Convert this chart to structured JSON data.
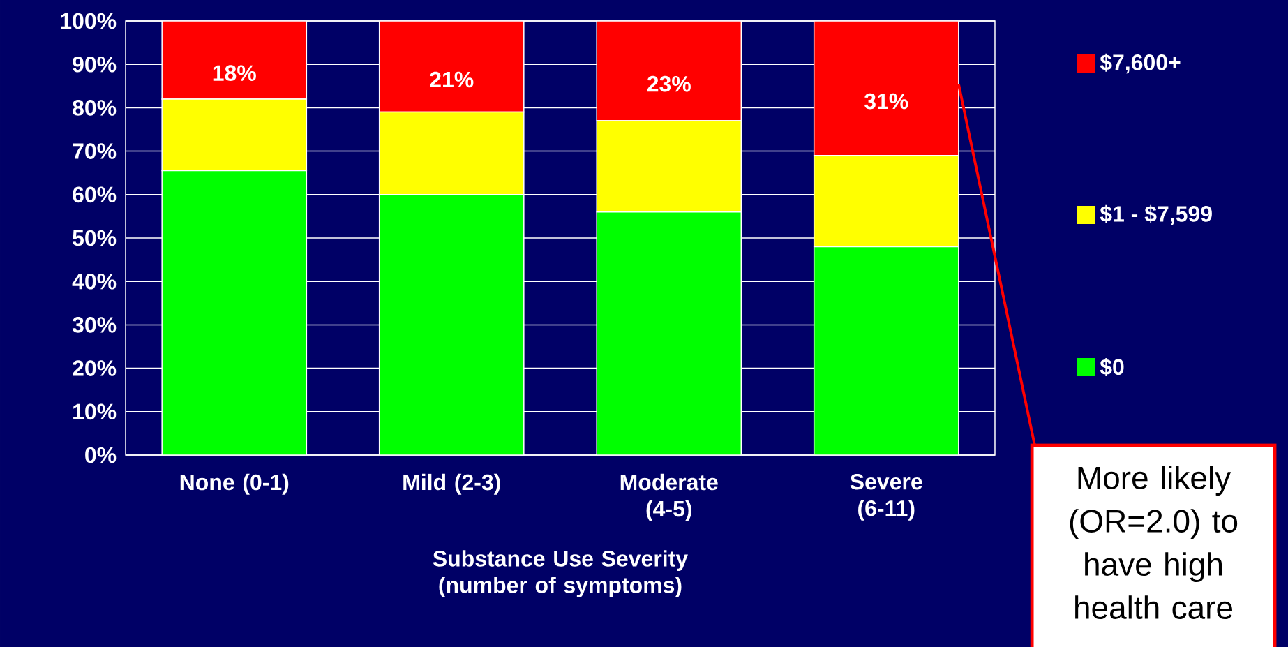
{
  "chart_data": {
    "type": "bar",
    "stacked": true,
    "xlabel": "Substance Use Severity (number of symptoms)",
    "categories": [
      "None (0-1)",
      "Mild (2-3)",
      "Moderate (4-5)",
      "Severe (6-11)"
    ],
    "series": [
      {
        "name": "$0",
        "color": "#00ff00",
        "values": [
          65.5,
          60,
          56,
          48
        ]
      },
      {
        "name": "$1 - $7,599",
        "color": "#ffff00",
        "values": [
          16.5,
          19,
          21,
          21
        ]
      },
      {
        "name": "$7,600+",
        "color": "#ff0000",
        "values": [
          18,
          21,
          23,
          31
        ],
        "value_labels": [
          "18%",
          "21%",
          "23%",
          "31%"
        ]
      }
    ],
    "ylim": [
      0,
      100
    ],
    "yticks": [
      {
        "value": 0,
        "label": "0%"
      },
      {
        "value": 10,
        "label": "10%"
      },
      {
        "value": 20,
        "label": "20%"
      },
      {
        "value": 30,
        "label": "30%"
      },
      {
        "value": 40,
        "label": "40%"
      },
      {
        "value": 50,
        "label": "50%"
      },
      {
        "value": 60,
        "label": "60%"
      },
      {
        "value": 70,
        "label": "70%"
      },
      {
        "value": 80,
        "label": "80%"
      },
      {
        "value": 90,
        "label": "90%"
      },
      {
        "value": 100,
        "label": "100%"
      }
    ],
    "grid": "y",
    "legend": "right",
    "annotations": [
      "More likely (OR=2.0) to have high health care"
    ]
  }
}
